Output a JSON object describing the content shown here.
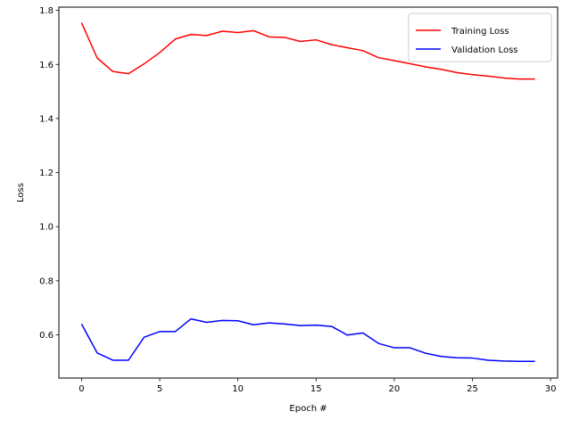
{
  "chart_data": {
    "type": "line",
    "xlabel": "Epoch #",
    "ylabel": "Loss",
    "xlim": [
      -1.45,
      30.45
    ],
    "ylim": [
      0.44,
      1.812
    ],
    "xticks": [
      0,
      5,
      10,
      15,
      20,
      25,
      30
    ],
    "yticks": [
      0.6,
      0.8,
      1.0,
      1.2,
      1.4,
      1.6,
      1.8
    ],
    "xtick_labels": [
      "0",
      "5",
      "10",
      "15",
      "20",
      "25",
      "30"
    ],
    "ytick_labels": [
      "0.6",
      "0.8",
      "1.0",
      "1.2",
      "1.4",
      "1.6",
      "1.8"
    ],
    "grid": false,
    "legend_position": "top-right",
    "x": [
      0,
      1,
      2,
      3,
      4,
      5,
      6,
      7,
      8,
      9,
      10,
      11,
      12,
      13,
      14,
      15,
      16,
      17,
      18,
      19,
      20,
      21,
      22,
      23,
      24,
      25,
      26,
      27,
      28,
      29
    ],
    "series": [
      {
        "name": "Training Loss",
        "color": "#ff0000",
        "values": [
          1.754,
          1.624,
          1.574,
          1.566,
          1.602,
          1.644,
          1.694,
          1.711,
          1.707,
          1.723,
          1.718,
          1.725,
          1.702,
          1.7,
          1.685,
          1.691,
          1.673,
          1.662,
          1.651,
          1.625,
          1.614,
          1.603,
          1.591,
          1.582,
          1.57,
          1.562,
          1.557,
          1.55,
          1.546,
          1.546
        ]
      },
      {
        "name": "Validation Loss",
        "color": "#0000ff",
        "values": [
          0.64,
          0.533,
          0.506,
          0.506,
          0.591,
          0.612,
          0.612,
          0.659,
          0.646,
          0.653,
          0.652,
          0.637,
          0.644,
          0.64,
          0.634,
          0.636,
          0.631,
          0.599,
          0.607,
          0.568,
          0.552,
          0.552,
          0.532,
          0.52,
          0.515,
          0.514,
          0.506,
          0.503,
          0.502,
          0.502
        ]
      }
    ]
  }
}
